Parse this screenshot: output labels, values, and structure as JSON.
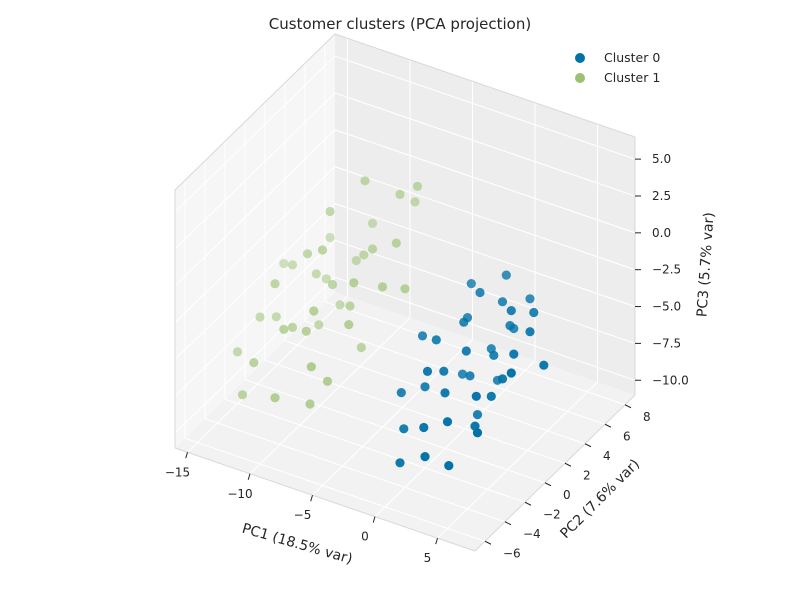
{
  "chart_data": {
    "type": "scatter",
    "projection": "3d",
    "title": "Customer clusters (PCA projection)",
    "xlabel": "PC1 (18.5% var)",
    "ylabel": "PC2 (7.6% var)",
    "zlabel": "PC3 (5.7% var)",
    "xlim": [
      -16,
      8
    ],
    "ylim": [
      -7,
      9
    ],
    "zlim": [
      -11,
      6.5
    ],
    "x_ticks": [
      "−15",
      "−10",
      "−5",
      "0",
      "5"
    ],
    "y_ticks": [
      "−6",
      "−4",
      "−2",
      "0",
      "2",
      "4",
      "6",
      "8"
    ],
    "z_ticks": [
      "−10.0",
      "−7.5",
      "−5.0",
      "−2.5",
      "0.0",
      "2.5",
      "5.0"
    ],
    "grid": true,
    "legend_position": "top-right",
    "series": [
      {
        "name": "Cluster 0",
        "color": "#0072a7",
        "points": [
          [
            2.0,
            1.0,
            -0.5
          ],
          [
            3.0,
            2.0,
            -1.5
          ],
          [
            1.5,
            0.0,
            -2.0
          ],
          [
            4.0,
            1.5,
            -2.5
          ],
          [
            2.5,
            -1.0,
            -3.0
          ],
          [
            0.5,
            -1.5,
            -2.5
          ],
          [
            3.5,
            0.5,
            -4.0
          ],
          [
            5.0,
            -0.5,
            -4.5
          ],
          [
            1.0,
            -3.0,
            -3.5
          ],
          [
            2.0,
            -2.5,
            -5.0
          ],
          [
            4.5,
            -1.0,
            -5.5
          ],
          [
            3.0,
            -3.5,
            -6.0
          ],
          [
            5.5,
            0.0,
            -3.0
          ],
          [
            0.0,
            -2.0,
            -5.5
          ],
          [
            1.5,
            -4.0,
            -6.5
          ],
          [
            6.0,
            1.0,
            -2.0
          ],
          [
            2.5,
            1.5,
            -4.5
          ],
          [
            4.0,
            -2.0,
            -7.0
          ],
          [
            -1.0,
            -1.0,
            -3.0
          ],
          [
            3.5,
            2.5,
            -3.5
          ],
          [
            1.0,
            0.5,
            -6.0
          ],
          [
            2.0,
            -4.5,
            -8.0
          ],
          [
            5.0,
            -3.0,
            -6.5
          ],
          [
            0.5,
            2.0,
            -1.0
          ],
          [
            3.0,
            -0.5,
            -7.5
          ],
          [
            -0.5,
            -3.5,
            -7.5
          ],
          [
            6.5,
            -1.5,
            -3.0
          ],
          [
            4.5,
            1.0,
            -1.0
          ],
          [
            1.5,
            -2.0,
            -4.0
          ],
          [
            7.5,
            0.5,
            -3.5
          ],
          [
            2.5,
            3.0,
            -0.5
          ],
          [
            -1.5,
            -2.5,
            -6.0
          ],
          [
            3.5,
            -4.0,
            -8.5
          ],
          [
            4.0,
            3.5,
            -2.0
          ],
          [
            2.0,
            0.0,
            -5.5
          ],
          [
            0.0,
            -4.5,
            -9.0
          ],
          [
            5.5,
            2.0,
            -1.5
          ],
          [
            1.0,
            1.0,
            -2.5
          ],
          [
            3.0,
            1.5,
            -6.5
          ],
          [
            4.5,
            -2.5,
            -4.5
          ]
        ]
      },
      {
        "name": "Cluster 1",
        "color": "#9bc172",
        "points": [
          [
            -8.0,
            2.0,
            3.5
          ],
          [
            -10.0,
            1.0,
            1.5
          ],
          [
            -6.0,
            3.0,
            2.5
          ],
          [
            -9.0,
            -1.0,
            0.5
          ],
          [
            -11.0,
            0.0,
            -1.0
          ],
          [
            -7.0,
            1.5,
            -0.5
          ],
          [
            -12.0,
            -2.0,
            -2.0
          ],
          [
            -5.0,
            0.0,
            -1.5
          ],
          [
            -8.5,
            -2.5,
            -2.5
          ],
          [
            -13.0,
            1.0,
            -3.0
          ],
          [
            -10.5,
            -3.0,
            -4.0
          ],
          [
            -6.5,
            -1.5,
            -3.5
          ],
          [
            -9.5,
            3.0,
            -3.0
          ],
          [
            -14.0,
            -1.0,
            -5.5
          ],
          [
            -7.5,
            -4.0,
            -5.0
          ],
          [
            -11.5,
            2.5,
            -4.5
          ],
          [
            -8.0,
            0.5,
            -4.0
          ],
          [
            -12.5,
            -3.5,
            -6.5
          ],
          [
            -5.5,
            2.0,
            0.0
          ],
          [
            -10.0,
            -4.5,
            -7.5
          ],
          [
            -9.0,
            4.0,
            -1.0
          ],
          [
            -13.5,
            0.0,
            -6.0
          ],
          [
            -7.0,
            -3.0,
            -6.5
          ],
          [
            -6.0,
            4.5,
            1.0
          ],
          [
            -11.0,
            -1.5,
            -5.0
          ],
          [
            -4.0,
            1.0,
            -2.0
          ],
          [
            -15.0,
            -2.0,
            -7.5
          ],
          [
            -8.5,
            2.5,
            -2.0
          ],
          [
            -12.0,
            3.5,
            -2.5
          ],
          [
            -9.5,
            -2.0,
            -4.5
          ],
          [
            -5.0,
            3.5,
            3.0
          ],
          [
            -10.5,
            0.5,
            -6.0
          ],
          [
            -7.5,
            1.0,
            -7.0
          ],
          [
            -13.0,
            -4.0,
            -8.5
          ],
          [
            -6.5,
            -1.0,
            -1.0
          ],
          [
            -11.5,
            1.5,
            -3.5
          ],
          [
            -8.0,
            -3.5,
            -8.0
          ],
          [
            -14.5,
            2.0,
            -4.0
          ],
          [
            -9.0,
            0.0,
            -2.5
          ],
          [
            -10.0,
            2.0,
            -5.5
          ]
        ]
      }
    ]
  }
}
